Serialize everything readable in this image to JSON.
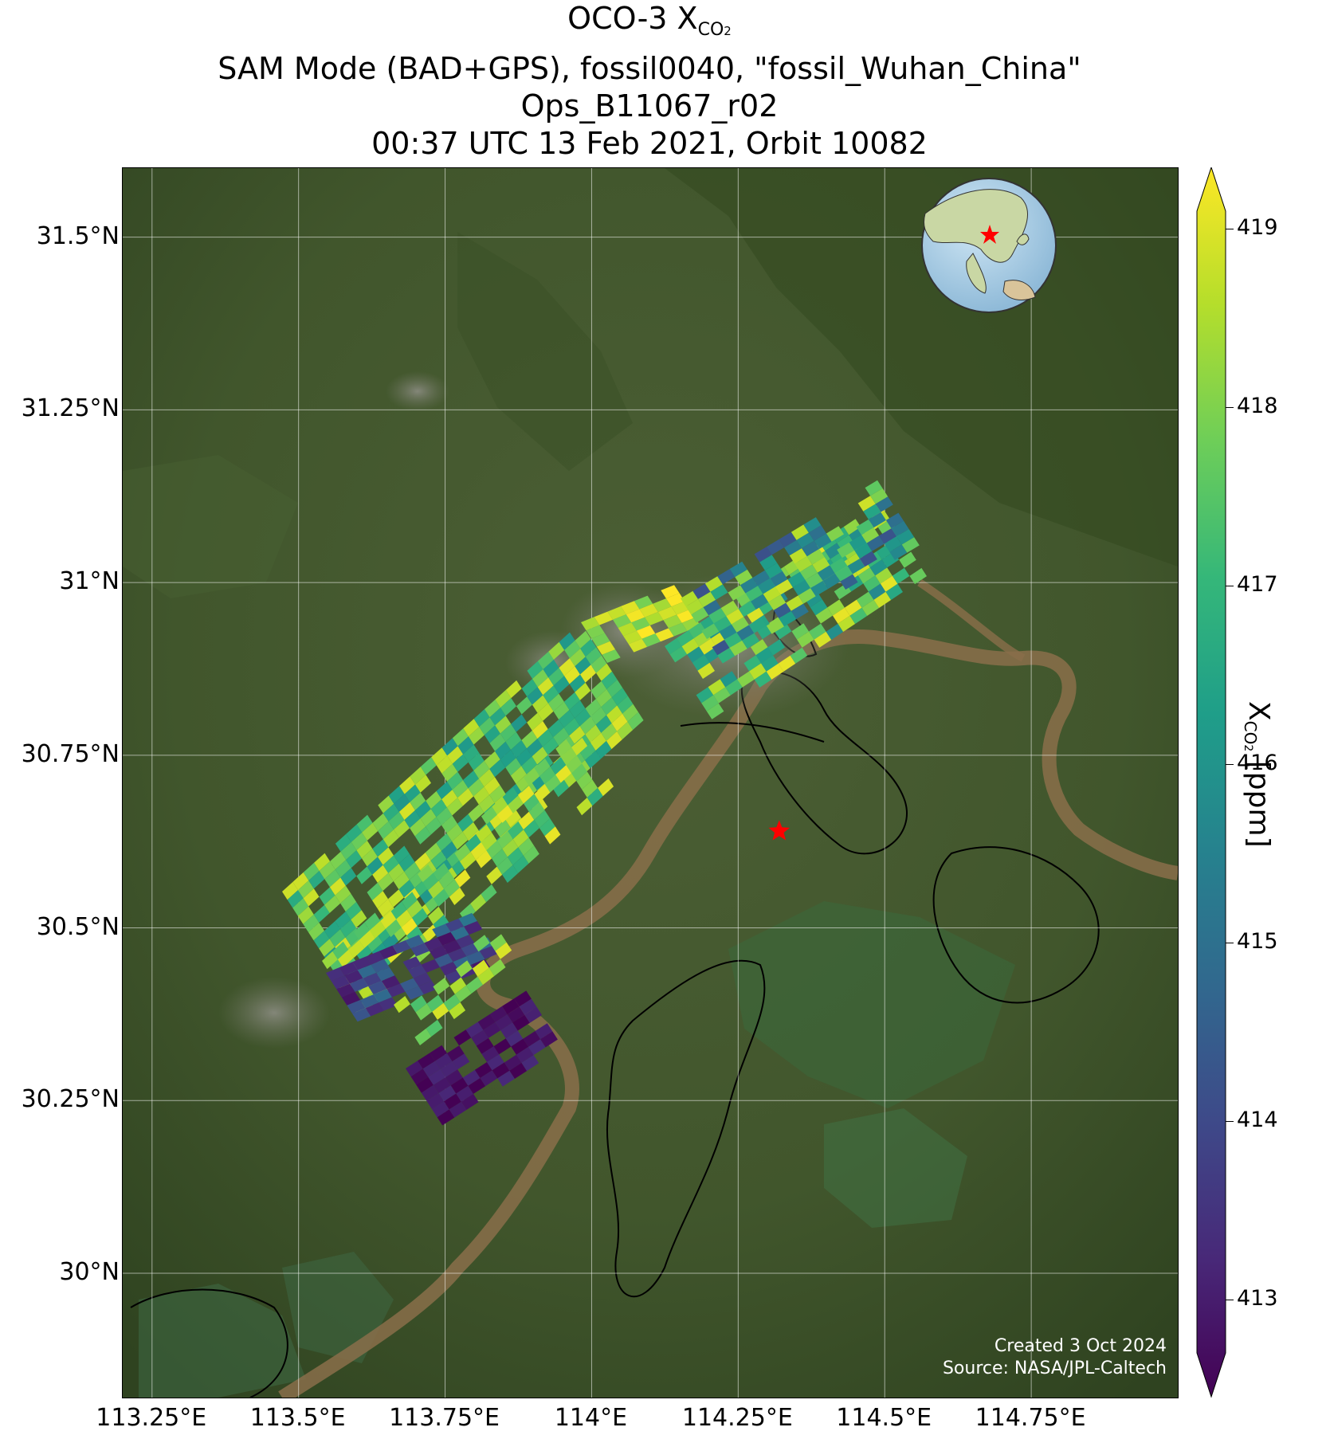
{
  "title": {
    "line1_prefix": "OCO-3 X",
    "line1_sub": "CO",
    "line1_subsub": "2",
    "line2": "SAM Mode (BAD+GPS), fossil0040, \"fossil_Wuhan_China\"",
    "line3": "Ops_B11067_r02",
    "line4": "00:37 UTC 13 Feb 2021, Orbit 10082"
  },
  "map": {
    "lat_ticks": [
      "31.5°N",
      "31.25°N",
      "31°N",
      "30.75°N",
      "30.5°N",
      "30.25°N",
      "30°N"
    ],
    "lon_ticks": [
      "113.25°E",
      "113.5°E",
      "113.75°E",
      "114°E",
      "114.25°E",
      "114.5°E",
      "114.75°E"
    ],
    "lat_values": [
      31.5,
      31.25,
      31.0,
      30.75,
      30.5,
      30.25,
      30.0
    ],
    "lon_values": [
      113.25,
      113.5,
      113.75,
      114.0,
      114.25,
      114.5,
      114.75
    ],
    "lat_range": [
      29.82,
      31.6
    ],
    "lon_range": [
      113.2,
      115.0
    ],
    "target_lon": 114.32,
    "target_lat": 30.64,
    "credit_line1": "Created 3 Oct 2024",
    "credit_line2": "Source: NASA/JPL-Caltech",
    "target_marker_icon": "red-star-icon",
    "inset_icon": "globe-inset-icon"
  },
  "colorbar": {
    "label_prefix": "X",
    "label_sub": "CO",
    "label_subsub": "2",
    "label_suffix": " [ppm]",
    "ticks": [
      "413",
      "414",
      "415",
      "416",
      "417",
      "418",
      "419"
    ],
    "tick_values": [
      413,
      414,
      415,
      416,
      417,
      418,
      419
    ],
    "range": [
      412.7,
      419.1
    ],
    "colormap": "viridis",
    "colors": [
      "#440154",
      "#482878",
      "#3e4989",
      "#31688e",
      "#26828e",
      "#1f9e89",
      "#35b779",
      "#6ece58",
      "#b5de2b",
      "#fde725"
    ]
  },
  "colors": {
    "target_marker": "#ff0000",
    "terrain": "#41562c",
    "river": "#8a6e4a",
    "gridline": "#ffffff"
  }
}
